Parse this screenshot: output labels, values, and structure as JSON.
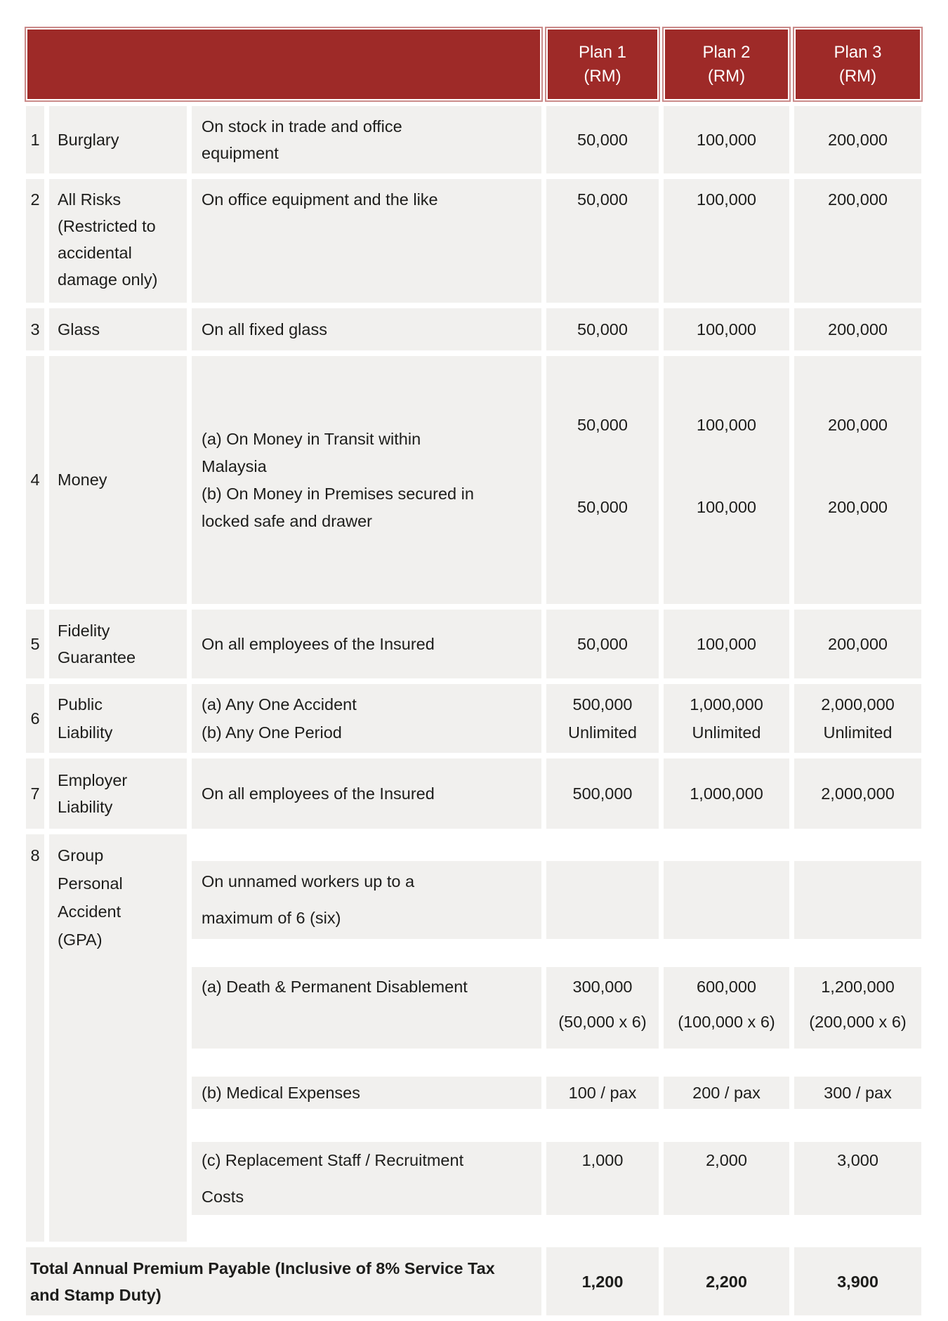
{
  "palette": {
    "header_bg": "#9e2a28",
    "row_bg": "#f1f0ee",
    "header_text": "#ffffff",
    "body_text": "#1d1d1b"
  },
  "table": {
    "header": {
      "plans": [
        {
          "label": "Plan 1",
          "unit": "(RM)"
        },
        {
          "label": "Plan 2",
          "unit": "(RM)"
        },
        {
          "label": "Plan 3",
          "unit": "(RM)"
        }
      ]
    },
    "rows": [
      {
        "num": "1",
        "name": "Burglary",
        "desc": "On stock in trade and office\nequipment",
        "plan1": "50,000",
        "plan2": "100,000",
        "plan3": "200,000"
      },
      {
        "num": "2",
        "name": "All Risks\n(Restricted to\naccidental\ndamage only)",
        "desc": "On office equipment and the like",
        "plan1": "50,000",
        "plan2": "100,000",
        "plan3": "200,000"
      },
      {
        "num": "3",
        "name": "Glass",
        "desc": "On all fixed glass",
        "plan1": "50,000",
        "plan2": "100,000",
        "plan3": "200,000"
      },
      {
        "num": "4",
        "name": "Money",
        "desc_a": "(a) On Money in Transit within\nMalaysia",
        "desc_b": "(b) On Money in Premises secured in\nlocked safe and drawer",
        "plan1_a": "50,000",
        "plan1_b": "50,000",
        "plan2_a": "100,000",
        "plan2_b": "100,000",
        "plan3_a": "200,000",
        "plan3_b": "200,000"
      },
      {
        "num": "5",
        "name": "Fidelity\nGuarantee",
        "desc": "On all employees of the Insured",
        "plan1": "50,000",
        "plan2": "100,000",
        "plan3": "200,000"
      },
      {
        "num": "6",
        "name": "Public\nLiability",
        "desc": "(a) Any One Accident\n(b) Any One Period",
        "plan1": "500,000\nUnlimited",
        "plan2": "1,000,000\nUnlimited",
        "plan3": "2,000,000\nUnlimited"
      },
      {
        "num": "7",
        "name": "Employer\nLiability",
        "desc": "On all employees of the Insured",
        "plan1": "500,000",
        "plan2": "1,000,000",
        "plan3": "2,000,000"
      },
      {
        "num": "8",
        "name": "Group\nPersonal\nAccident\n(GPA)",
        "sub": [
          {
            "desc": "On unnamed workers up to a\nmaximum of 6 (six)",
            "plan1": "",
            "plan2": "",
            "plan3": ""
          },
          {
            "desc": "(a) Death & Permanent Disablement",
            "plan1": "300,000\n(50,000 x 6)",
            "plan2": "600,000\n(100,000 x 6)",
            "plan3": "1,200,000\n(200,000 x 6)"
          },
          {
            "desc": "(b) Medical Expenses",
            "plan1": "100 / pax",
            "plan2": "200 / pax",
            "plan3": "300 / pax"
          },
          {
            "desc": "(c) Replacement Staff / Recruitment\nCosts",
            "plan1": "1,000",
            "plan2": "2,000",
            "plan3": "3,000"
          }
        ]
      }
    ],
    "total": {
      "label": "Total Annual Premium Payable (Inclusive of 8% Service Tax\nand Stamp Duty)",
      "plan1": "1,200",
      "plan2": "2,200",
      "plan3": "3,900"
    }
  }
}
